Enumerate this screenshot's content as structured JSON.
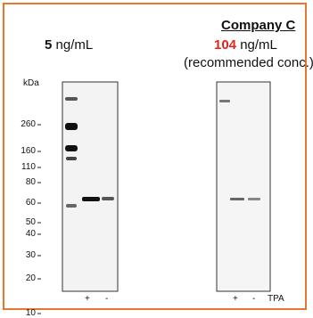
{
  "left_panel": {
    "concentration_value": "5",
    "concentration_unit": " ng/mL"
  },
  "right_panel": {
    "company": "Company C",
    "concentration_value": "104",
    "concentration_unit": " ng/mL",
    "note": "(recommended conc.)"
  },
  "axis_label": "kDa",
  "markers": [
    "260",
    "160",
    "110",
    "80",
    "60",
    "50",
    "40",
    "30",
    "20",
    "10"
  ],
  "lane_labels": {
    "left": [
      "+",
      "-"
    ],
    "right": [
      "+",
      "-"
    ],
    "treatment": "TPA"
  },
  "colors": {
    "frame": "#e8762f",
    "highlight": "#e8201e"
  }
}
